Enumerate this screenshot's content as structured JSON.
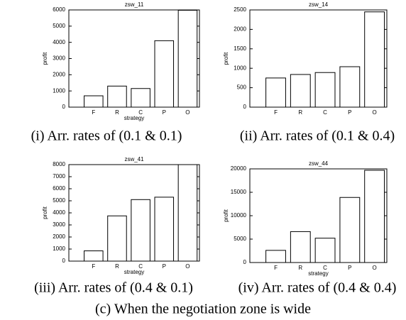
{
  "chart_data": [
    {
      "type": "bar",
      "title": "zsw_11",
      "xlabel": "strategy",
      "ylabel": "profit",
      "categories": [
        "F",
        "R",
        "C",
        "P",
        "O"
      ],
      "values": [
        700,
        1300,
        1150,
        4100,
        5980
      ],
      "color": "#ffffff",
      "ylim": [
        0,
        6000
      ],
      "yticks": [
        0,
        1000,
        2000,
        3000,
        4000,
        5000,
        6000
      ],
      "caption": "(i) Arr. rates of (0.1 & 0.1)"
    },
    {
      "type": "bar",
      "title": "zsw_14",
      "ylabel": "profit",
      "categories": [
        "F",
        "R",
        "C",
        "P",
        "O"
      ],
      "values": [
        750,
        840,
        890,
        1040,
        2450
      ],
      "color": "#ffffff",
      "ylim": [
        0,
        2500
      ],
      "yticks": [
        0,
        500,
        1000,
        1500,
        2000,
        2500
      ],
      "caption": "(ii) Arr. rates of (0.1 & 0.4)"
    },
    {
      "type": "bar",
      "title": "zsw_41",
      "xlabel": "strategy",
      "ylabel": "profit",
      "categories": [
        "F",
        "R",
        "C",
        "P",
        "O"
      ],
      "values": [
        850,
        3750,
        5100,
        5300,
        8000
      ],
      "color": "#ffffff",
      "ylim": [
        0,
        8000
      ],
      "yticks": [
        0,
        1000,
        2000,
        3000,
        4000,
        5000,
        6000,
        7000,
        8000
      ],
      "caption": "(iii) Arr. rates of (0.4 & 0.1)"
    },
    {
      "type": "bar",
      "title": "zsw_44",
      "xlabel": "strategy",
      "ylabel": "profit",
      "categories": [
        "F",
        "R",
        "C",
        "P",
        "O"
      ],
      "values": [
        2600,
        6600,
        5200,
        13900,
        19700
      ],
      "color": "#ffffff",
      "ylim": [
        0,
        20000
      ],
      "yticks": [
        0,
        5000,
        10000,
        15000,
        20000
      ],
      "caption": "(iv) Arr. rates of (0.4 & 0.4)"
    }
  ],
  "figure_caption": "(c) When the negotiation zone is wide"
}
